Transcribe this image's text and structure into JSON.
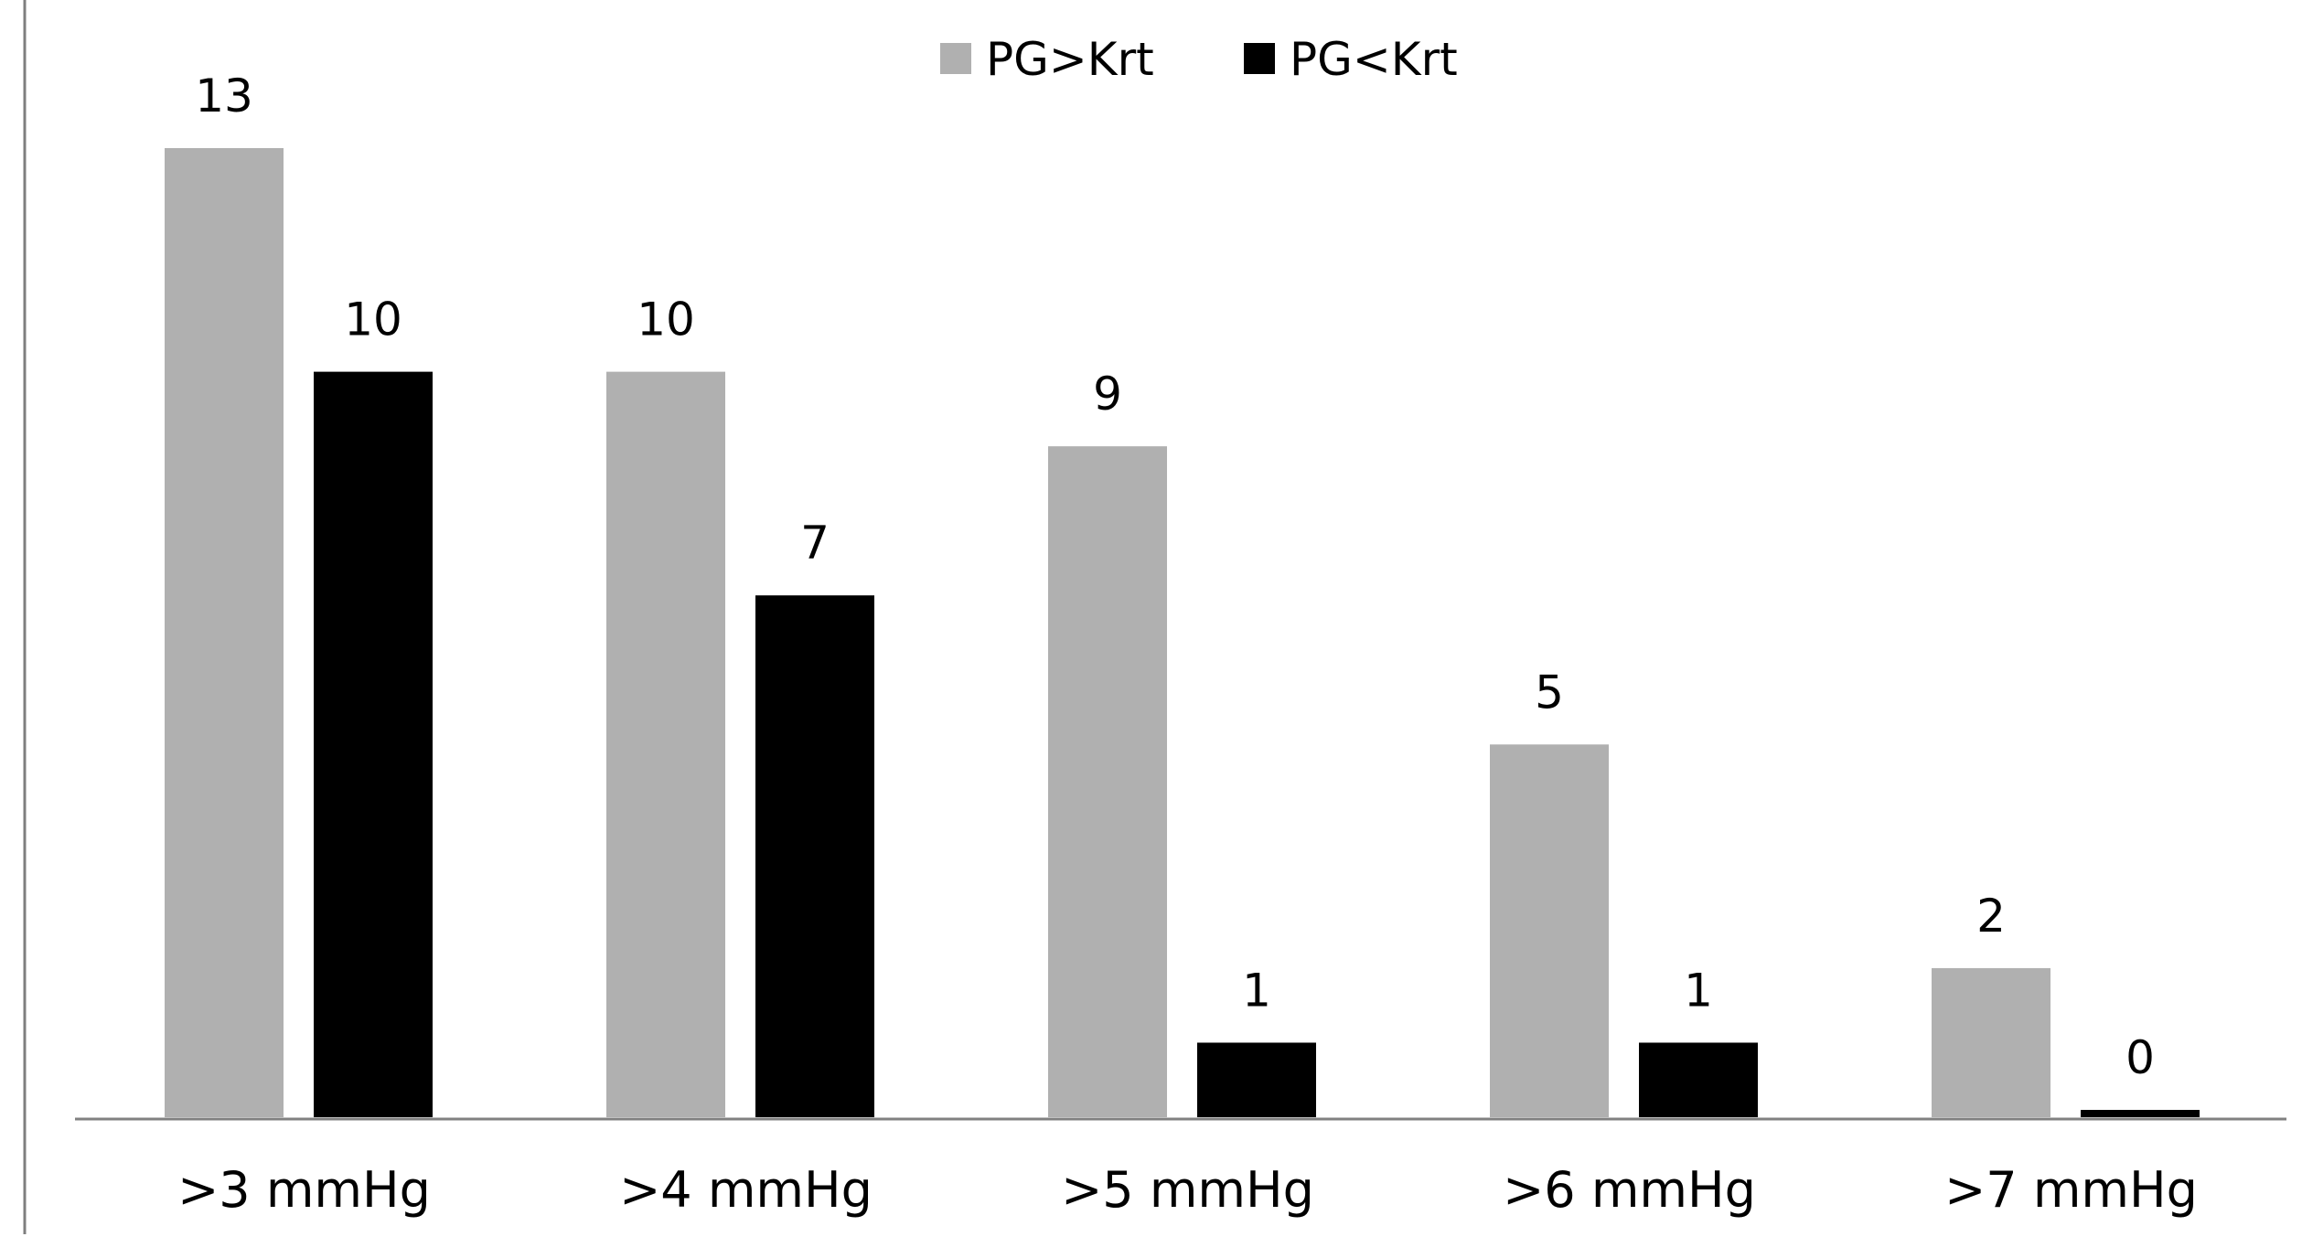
{
  "chart_data": {
    "type": "bar",
    "title": "",
    "xlabel": "",
    "ylabel": "",
    "categories": [
      ">3 mmHg",
      ">4 mmHg",
      ">5 mmHg",
      ">6 mmHg",
      ">7 mmHg"
    ],
    "series": [
      {
        "name": "PG>Krt",
        "color": "#b0b0b0",
        "values": [
          13,
          10,
          9,
          5,
          2
        ]
      },
      {
        "name": "PG<Krt",
        "color": "#000000",
        "values": [
          10,
          7,
          1,
          1,
          0
        ]
      }
    ],
    "ylim": [
      0,
      13
    ],
    "grid": false,
    "legend_position": "top-center",
    "data_labels": true,
    "y_axis_ticks": false
  }
}
